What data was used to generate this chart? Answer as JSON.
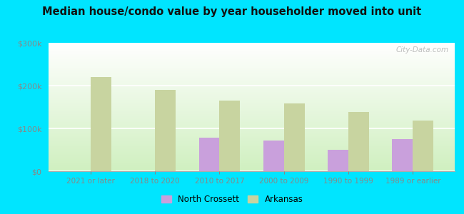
{
  "title": "Median house/condo value by year householder moved into unit",
  "categories": [
    "2021 or later",
    "2018 to 2020",
    "2010 to 2017",
    "2000 to 2009",
    "1990 to 1999",
    "1989 or earlier"
  ],
  "north_crossett": [
    0,
    0,
    78000,
    72000,
    50000,
    75000
  ],
  "arkansas": [
    220000,
    190000,
    165000,
    158000,
    138000,
    118000
  ],
  "nc_color": "#c9a0dc",
  "ar_color": "#c8d4a0",
  "background_top": "#ffffff",
  "background_bottom": "#d0f0c0",
  "background_outer": "#00e5ff",
  "ylim": [
    0,
    300000
  ],
  "yticks": [
    0,
    100000,
    200000,
    300000
  ],
  "ytick_labels": [
    "$0",
    "$100k",
    "$200k",
    "$300k"
  ],
  "legend_nc": "North Crossett",
  "legend_ar": "Arkansas",
  "watermark": "City-Data.com",
  "bar_width": 0.32,
  "tick_color": "#888888",
  "title_fontsize": 10.5
}
